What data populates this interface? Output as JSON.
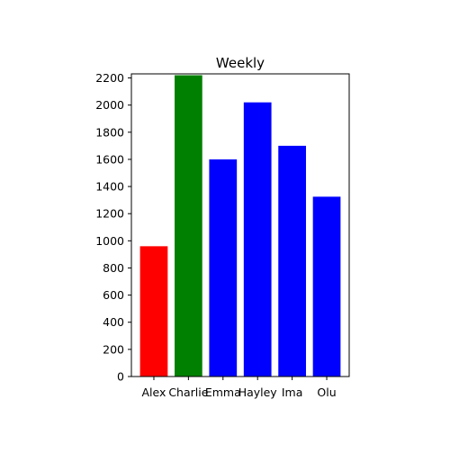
{
  "chart_data": {
    "type": "bar",
    "title": "Weekly",
    "xlabel": "",
    "ylabel": "",
    "categories": [
      "Alex",
      "Charlie",
      "Emma",
      "Hayley",
      "Ima",
      "Olu"
    ],
    "values": [
      960,
      2220,
      1600,
      2020,
      1700,
      1325
    ],
    "colors": [
      "#ff0000",
      "#008000",
      "#0000ff",
      "#0000ff",
      "#0000ff",
      "#0000ff"
    ],
    "ylim": [
      0,
      2230
    ],
    "yticks": [
      0,
      200,
      400,
      600,
      800,
      1000,
      1200,
      1400,
      1600,
      1800,
      2000,
      2200
    ],
    "grid": false,
    "legend": "none"
  }
}
